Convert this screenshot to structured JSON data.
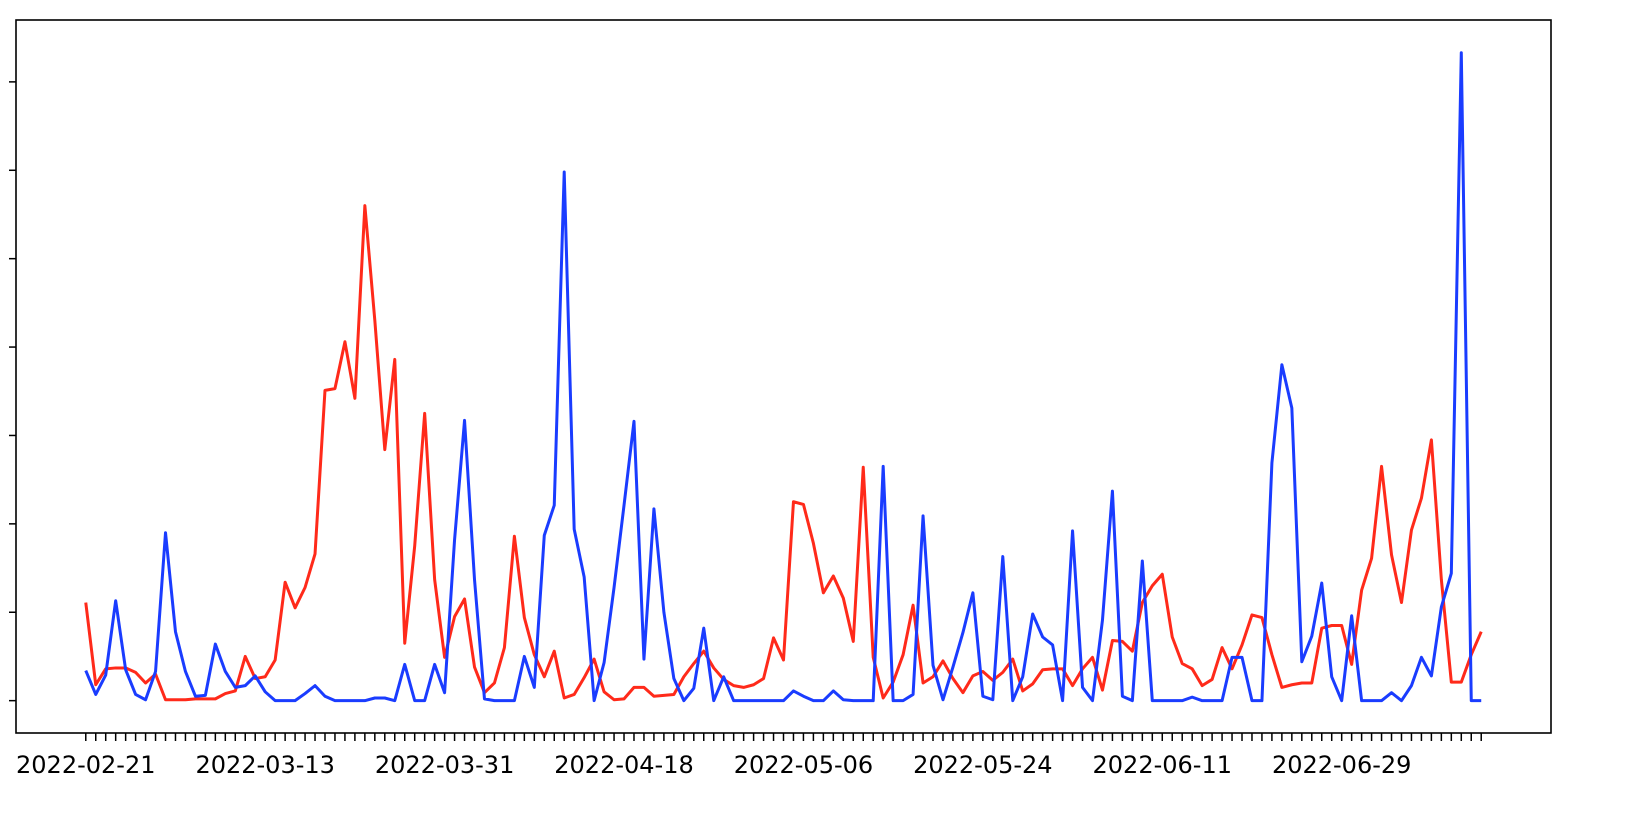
{
  "chart_data": {
    "type": "line",
    "categories": [
      "2022-02-21",
      null,
      null,
      null,
      null,
      null,
      null,
      null,
      null,
      null,
      null,
      null,
      null,
      null,
      null,
      null,
      null,
      null,
      "2022-03-13",
      null,
      null,
      null,
      null,
      null,
      null,
      null,
      null,
      null,
      null,
      null,
      null,
      null,
      null,
      null,
      null,
      null,
      "2022-03-31",
      null,
      null,
      null,
      null,
      null,
      null,
      null,
      null,
      null,
      null,
      null,
      null,
      null,
      null,
      null,
      null,
      null,
      "2022-04-18",
      null,
      null,
      null,
      null,
      null,
      null,
      null,
      null,
      null,
      null,
      null,
      null,
      null,
      null,
      null,
      null,
      null,
      "2022-05-06",
      null,
      null,
      null,
      null,
      null,
      null,
      null,
      null,
      null,
      null,
      null,
      null,
      null,
      null,
      null,
      null,
      null,
      "2022-05-24",
      null,
      null,
      null,
      null,
      null,
      null,
      null,
      null,
      null,
      null,
      null,
      null,
      null,
      null,
      null,
      null,
      null,
      "2022-06-11",
      null,
      null,
      null,
      null,
      null,
      null,
      null,
      null,
      null,
      null,
      null,
      null,
      null,
      null,
      null,
      null,
      null,
      "2022-06-29",
      null,
      null,
      null,
      null,
      null,
      null,
      null,
      null,
      null,
      null,
      null,
      null,
      null,
      null
    ],
    "series": [
      {
        "color": "#ff2a1a",
        "values": [
          1.11,
          0.18,
          0.36,
          0.37,
          0.37,
          0.32,
          0.2,
          0.3,
          0.01,
          0.01,
          0.01,
          0.02,
          0.02,
          0.02,
          0.08,
          0.11,
          0.5,
          0.25,
          0.27,
          0.46,
          1.34,
          1.05,
          1.28,
          1.66,
          3.51,
          3.53,
          4.06,
          3.42,
          5.6,
          4.3,
          2.84,
          3.86,
          0.65,
          1.75,
          3.25,
          1.37,
          0.49,
          0.95,
          1.15,
          0.38,
          0.09,
          0.2,
          0.6,
          1.86,
          0.94,
          0.52,
          0.27,
          0.56,
          0.03,
          0.07,
          0.26,
          0.47,
          0.1,
          0.01,
          0.02,
          0.15,
          0.15,
          0.05,
          0.06,
          0.07,
          0.27,
          0.42,
          0.56,
          0.37,
          0.24,
          0.17,
          0.15,
          0.18,
          0.25,
          0.71,
          0.46,
          2.25,
          2.22,
          1.78,
          1.22,
          1.41,
          1.16,
          0.67,
          2.64,
          0.49,
          0.03,
          0.21,
          0.52,
          1.08,
          0.2,
          0.27,
          0.45,
          0.25,
          0.09,
          0.28,
          0.33,
          0.23,
          0.32,
          0.47,
          0.11,
          0.19,
          0.35,
          0.36,
          0.36,
          0.17,
          0.36,
          0.49,
          0.12,
          0.68,
          0.67,
          0.56,
          1.11,
          1.3,
          1.43,
          0.72,
          0.42,
          0.36,
          0.17,
          0.24,
          0.6,
          0.36,
          0.63,
          0.97,
          0.94,
          0.52,
          0.15,
          0.18,
          0.2,
          0.2,
          0.82,
          0.85,
          0.85,
          0.41,
          1.25,
          1.61,
          2.65,
          1.65,
          1.11,
          1.93,
          2.29,
          2.95,
          1.37,
          0.21,
          0.21,
          0.52,
          0.78
        ]
      },
      {
        "color": "#1a3cff",
        "values": [
          0.34,
          0.07,
          0.29,
          1.13,
          0.35,
          0.07,
          0.01,
          0.33,
          1.9,
          0.78,
          0.33,
          0.05,
          0.06,
          0.64,
          0.33,
          0.15,
          0.17,
          0.28,
          0.1,
          0,
          0,
          0,
          0.08,
          0.17,
          0.05,
          0,
          0,
          0,
          0,
          0.03,
          0.03,
          0,
          0.41,
          0,
          0,
          0.41,
          0.09,
          1.82,
          3.17,
          1.37,
          0.02,
          0,
          0,
          0,
          0.5,
          0.15,
          1.87,
          2.21,
          5.98,
          1.94,
          1.4,
          0,
          0.43,
          1.28,
          2.21,
          3.16,
          0.47,
          2.17,
          1.0,
          0.25,
          0,
          0.14,
          0.82,
          0,
          0.27,
          0,
          0,
          0,
          0,
          0,
          0,
          0.11,
          0.05,
          0,
          0,
          0.11,
          0.01,
          0,
          0,
          0,
          2.65,
          0,
          0,
          0.07,
          2.09,
          0.4,
          0.01,
          0.38,
          0.77,
          1.22,
          0.05,
          0.01,
          1.63,
          0,
          0.27,
          0.98,
          0.72,
          0.63,
          0,
          1.92,
          0.15,
          0,
          0.91,
          2.37,
          0.05,
          0,
          1.58,
          0,
          0,
          0,
          0,
          0.04,
          0,
          0,
          0,
          0.49,
          0.49,
          0,
          0,
          2.69,
          3.8,
          3.31,
          0.44,
          0.73,
          1.33,
          0.27,
          0,
          0.96,
          0,
          0,
          0,
          0.09,
          0,
          0.17,
          0.49,
          0.28,
          1.06,
          1.44,
          7.33,
          0,
          0
        ]
      }
    ],
    "ylim": [
      -0.366,
      7.7
    ],
    "yticks": [
      0,
      1,
      2,
      3,
      4,
      5,
      6,
      7
    ],
    "ytick_labels": false,
    "grid": false
  }
}
